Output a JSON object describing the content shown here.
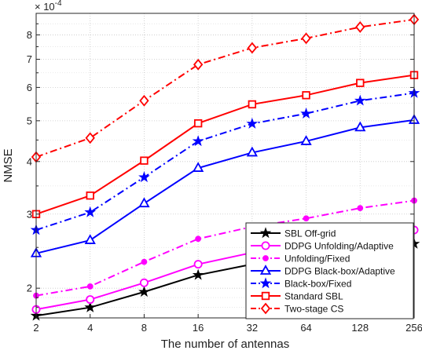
{
  "chart_data": {
    "type": "line",
    "xlabel": "The number of antennas",
    "ylabel": "NMSE",
    "y_exponent_label": "× 10",
    "y_exponent_power": "-4",
    "y_scale": "log",
    "ylim": [
      1.7,
      9.0
    ],
    "grid": true,
    "legend_position": "bottom-right",
    "x": [
      "2",
      "4",
      "8",
      "16",
      "32",
      "64",
      "128",
      "256"
    ],
    "y_ticks": [
      "2",
      "3",
      "4",
      "5",
      "6",
      "7",
      "8"
    ],
    "series": [
      {
        "name": "SBL Off-grid",
        "color": "#000000",
        "dash": "solid",
        "marker": "star",
        "values": [
          1.72,
          1.8,
          1.96,
          2.15,
          2.28,
          2.36,
          2.46,
          2.55
        ]
      },
      {
        "name": "DDPG Unfolding/Adaptive",
        "color": "#ff00ff",
        "dash": "solid",
        "marker": "circle",
        "values": [
          1.78,
          1.88,
          2.06,
          2.28,
          2.43,
          2.53,
          2.65,
          2.75
        ]
      },
      {
        "name": "Unfolding/Fixed",
        "color": "#ff00ff",
        "dash": "dashdot",
        "marker": "dot",
        "values": [
          1.92,
          2.02,
          2.31,
          2.62,
          2.8,
          2.93,
          3.1,
          3.23
        ]
      },
      {
        "name": "DDPG Black-box/Adaptive",
        "color": "#0000ff",
        "dash": "solid",
        "marker": "triangle",
        "values": [
          2.42,
          2.6,
          3.18,
          3.86,
          4.2,
          4.47,
          4.82,
          5.02
        ]
      },
      {
        "name": "Black-box/Fixed",
        "color": "#0000ff",
        "dash": "dashdot",
        "marker": "star",
        "values": [
          2.75,
          3.03,
          3.67,
          4.47,
          4.92,
          5.2,
          5.58,
          5.82
        ]
      },
      {
        "name": "Standard SBL",
        "color": "#ff0000",
        "dash": "solid",
        "marker": "square",
        "values": [
          3.0,
          3.32,
          4.02,
          4.93,
          5.47,
          5.75,
          6.15,
          6.42
        ]
      },
      {
        "name": "Two-stage CS",
        "color": "#ff0000",
        "dash": "dashdot",
        "marker": "diamond",
        "values": [
          4.1,
          4.55,
          5.58,
          6.8,
          7.45,
          7.85,
          8.35,
          8.7
        ]
      }
    ]
  }
}
